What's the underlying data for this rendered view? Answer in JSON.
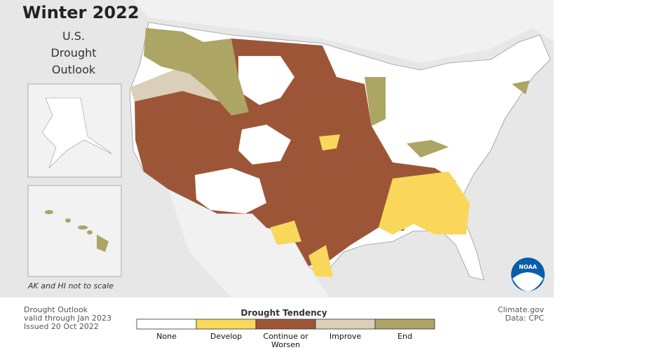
{
  "header": {
    "title": "Winter 2022",
    "subtitle_lines": [
      "U.S.",
      "Drought",
      "Outlook"
    ]
  },
  "inset_note": "AK and HI not to scale",
  "footer_left": [
    "Drought Outlook",
    "valid through Jan 2023",
    "Issued 20 Oct 2022"
  ],
  "legend": {
    "title": "Drought Tendency",
    "items": [
      {
        "label": "None",
        "color": "#ffffff"
      },
      {
        "label": "Develop",
        "color": "#f8d75b"
      },
      {
        "label": "Continue or Worsen",
        "color": "#9c5637"
      },
      {
        "label": "Improve",
        "color": "#dccfb9"
      },
      {
        "label": "End",
        "color": "#aca564"
      }
    ]
  },
  "credits": [
    "Climate.gov",
    "Data: CPC"
  ],
  "logo": "NOAA"
}
